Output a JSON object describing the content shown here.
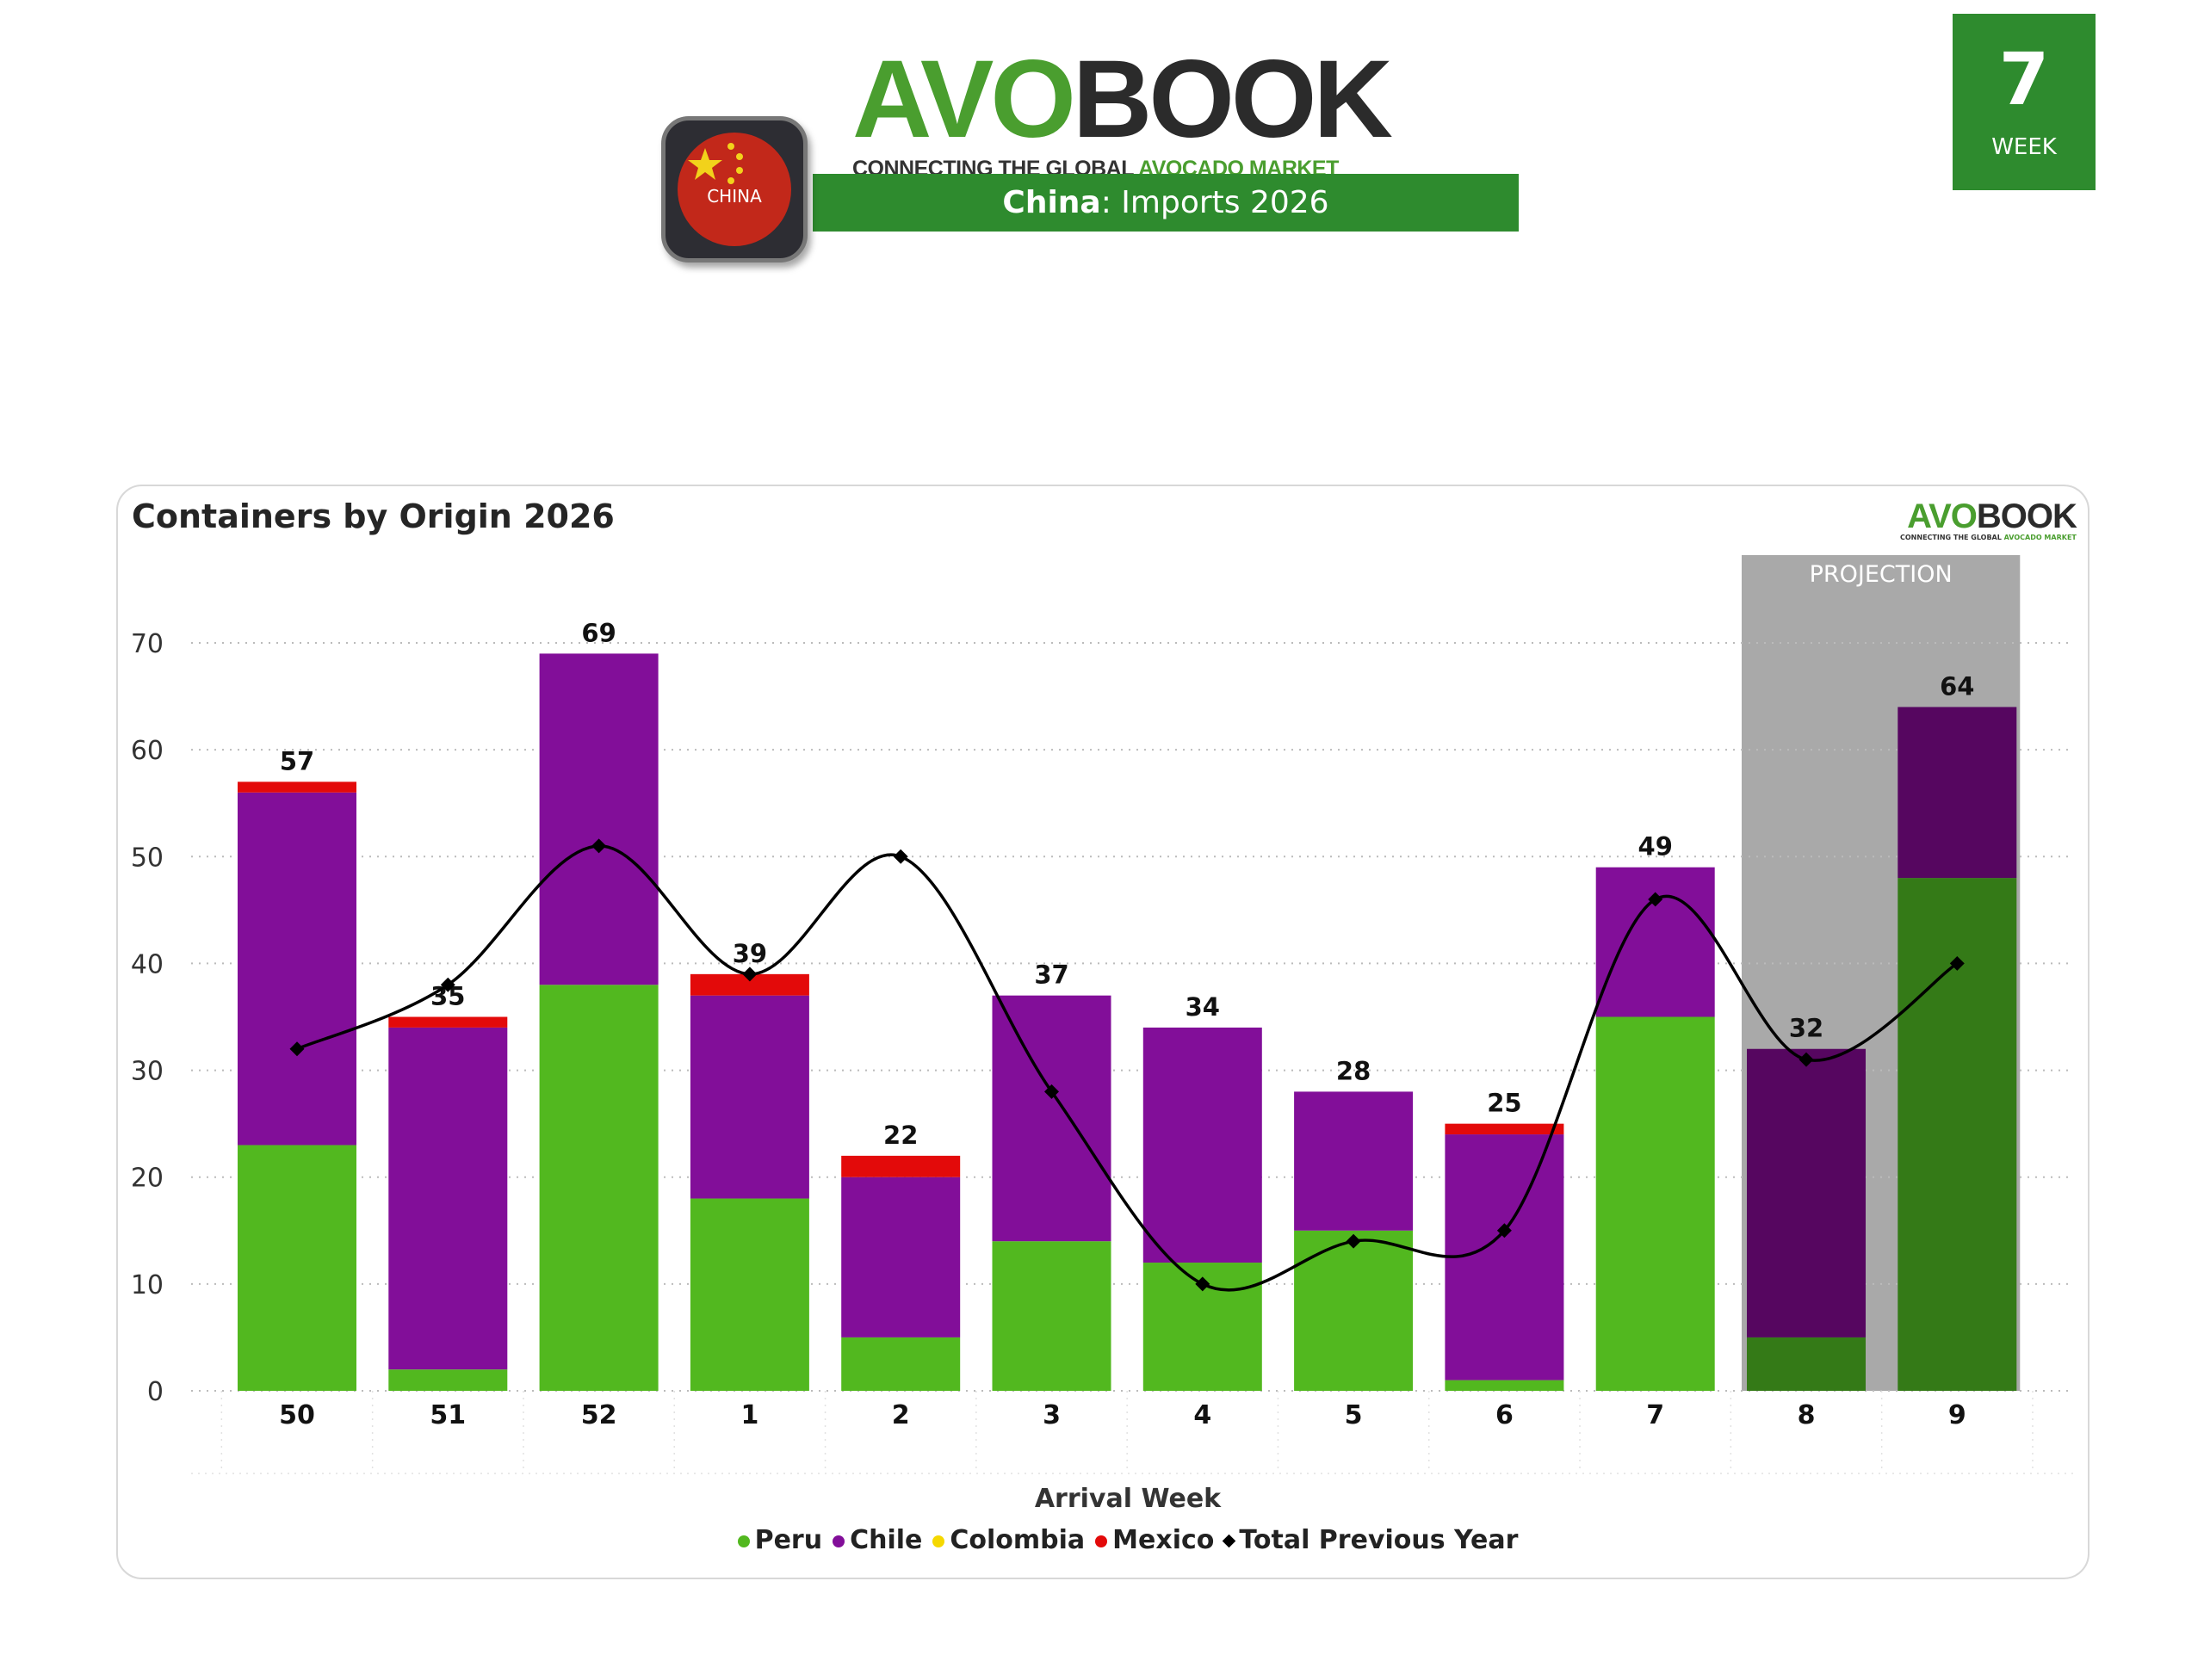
{
  "header": {
    "week_number": "7",
    "week_label": "WEEK",
    "logo_text_green": "AVO",
    "logo_text_dark": "BOOK",
    "logo_tagline_dark": "CONNECTING THE GLOBAL ",
    "logo_tagline_green": "AVOCADO MARKET",
    "country_badge": "CHINA",
    "title_country": "China",
    "title_rest": ": Imports 2026"
  },
  "colors": {
    "peru": "#52b81f",
    "chile": "#820e99",
    "colombia": "#f5d800",
    "mexico": "#e30a0a",
    "prev": "#000000",
    "peru_proj": "#347a17",
    "chile_proj": "#560660",
    "projection_bg": "#a9a9a9",
    "brand": "#2e8b2e"
  },
  "chart_data": {
    "type": "bar",
    "stacked": true,
    "title": "Containers by Origin 2026",
    "xlabel": "Arrival Week",
    "ylabel": "",
    "ylim": [
      0,
      70
    ],
    "yticks": [
      0,
      10,
      20,
      30,
      40,
      50,
      60,
      70
    ],
    "grid": true,
    "legend_position": "bottom",
    "categories": [
      "50",
      "51",
      "52",
      "1",
      "2",
      "3",
      "4",
      "5",
      "6",
      "7",
      "8",
      "9"
    ],
    "series": [
      {
        "name": "Peru",
        "type": "bar",
        "values": [
          23,
          2,
          38,
          18,
          5,
          14,
          12,
          15,
          1,
          35,
          5,
          48
        ]
      },
      {
        "name": "Chile",
        "type": "bar",
        "values": [
          33,
          32,
          31,
          19,
          15,
          23,
          22,
          13,
          23,
          14,
          27,
          16
        ]
      },
      {
        "name": "Colombia",
        "type": "bar",
        "values": [
          0,
          0,
          0,
          0,
          0,
          0,
          0,
          0,
          0,
          0,
          0,
          0
        ]
      },
      {
        "name": "Mexico",
        "type": "bar",
        "values": [
          1,
          1,
          0,
          2,
          2,
          0,
          0,
          0,
          1,
          0,
          0,
          0
        ]
      },
      {
        "name": "Total Previous Year",
        "type": "line",
        "values": [
          32,
          38,
          51,
          39,
          50,
          28,
          10,
          14,
          15,
          46,
          31,
          40
        ]
      }
    ],
    "totals": [
      57,
      35,
      69,
      39,
      22,
      37,
      34,
      28,
      25,
      49,
      32,
      64
    ],
    "projection": {
      "label": "PROJECTION",
      "categories": [
        "8",
        "9"
      ]
    }
  }
}
